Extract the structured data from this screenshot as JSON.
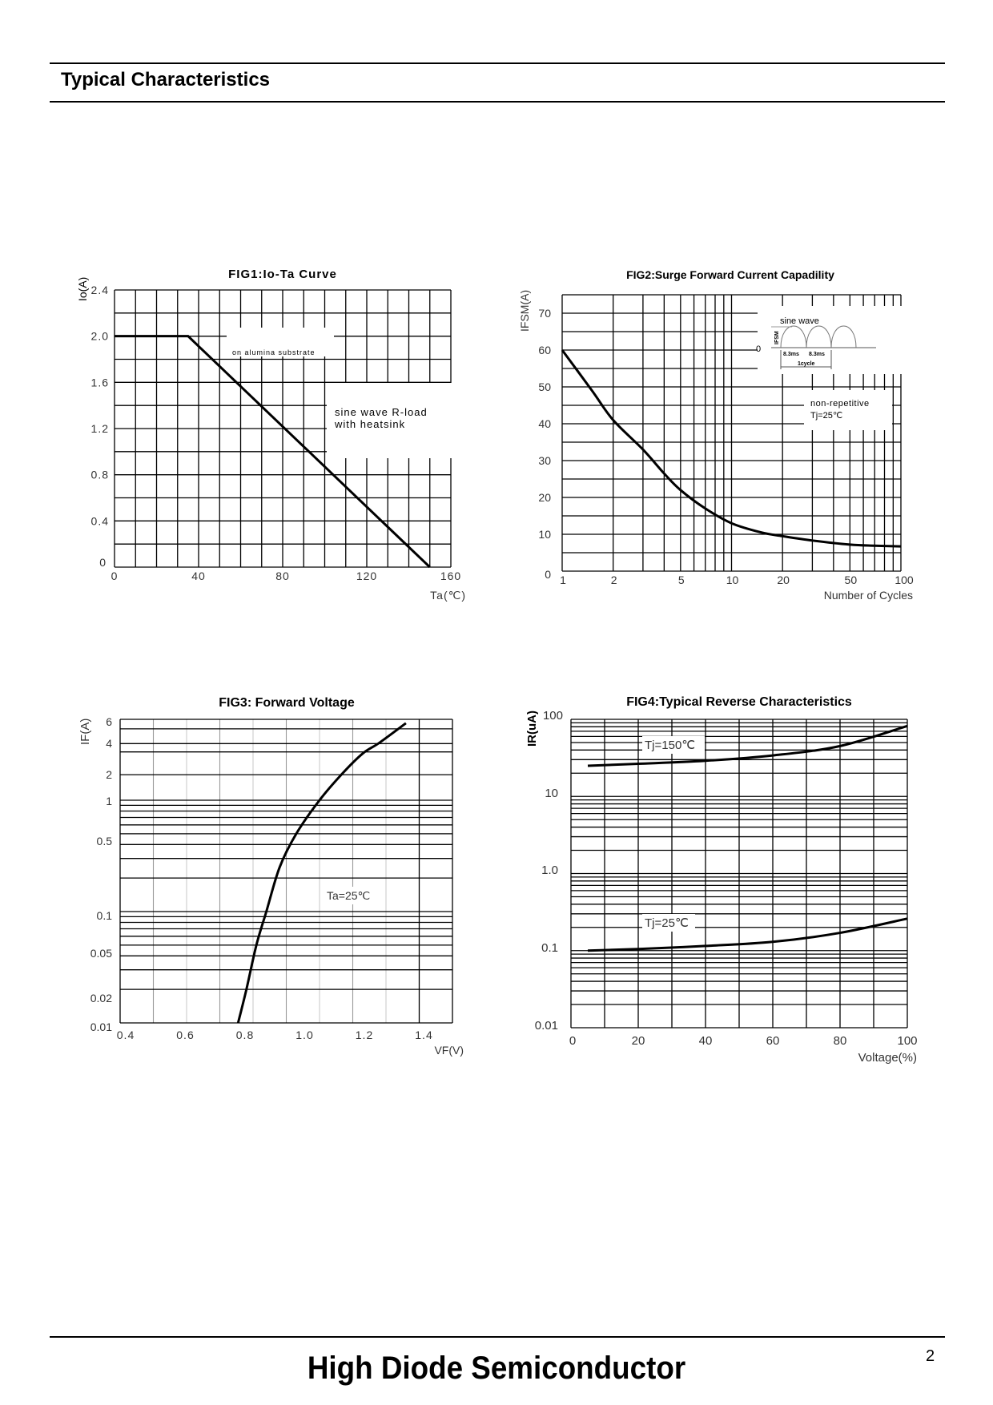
{
  "header": {
    "title": "Typical Characteristics"
  },
  "footer": {
    "brand": "High Diode Semiconductor",
    "page_number": "2"
  },
  "chart_data": [
    {
      "id": "fig1",
      "type": "line",
      "title": "FIG1:Io-Ta Curve",
      "xlabel": "Ta(℃)",
      "ylabel": "Io(A)",
      "xlim": [
        0,
        160
      ],
      "ylim": [
        0,
        2.4
      ],
      "x_ticks": [
        0,
        40,
        80,
        120,
        160
      ],
      "x_tick_labels": [
        "0",
        "40",
        "80",
        "120",
        "160"
      ],
      "y_ticks": [
        0,
        0.4,
        0.8,
        1.2,
        1.6,
        2.0,
        2.4
      ],
      "y_tick_labels": [
        "0",
        "0.4",
        "0.8",
        "1.2",
        "1.6",
        "2.0",
        "2.4"
      ],
      "grid": true,
      "series": [
        {
          "name": "Io",
          "x": [
            0,
            35,
            150
          ],
          "y": [
            2.0,
            2.0,
            0
          ]
        }
      ],
      "annotations": [
        "on alumina substrate",
        "sine wave R-load",
        "with heatsink"
      ]
    },
    {
      "id": "fig2",
      "type": "line",
      "title": "FIG2:Surge Forward Current Capadility",
      "xlabel": "Number of Cycles",
      "ylabel": "IFSM(A)",
      "xscale": "log",
      "xlim": [
        1,
        100
      ],
      "ylim": [
        0,
        75
      ],
      "x_ticks": [
        1,
        2,
        5,
        10,
        20,
        50,
        100
      ],
      "x_tick_labels": [
        "1",
        "2",
        "5",
        "10",
        "20",
        "50",
        "100"
      ],
      "y_ticks": [
        0,
        10,
        20,
        30,
        40,
        50,
        60,
        70
      ],
      "y_tick_labels": [
        "0",
        "10",
        "20",
        "30",
        "40",
        "50",
        "60",
        "70"
      ],
      "grid": true,
      "series": [
        {
          "name": "IFSM",
          "x": [
            1,
            1.5,
            2,
            3,
            4,
            5,
            7,
            10,
            15,
            20,
            30,
            50,
            70,
            100
          ],
          "y": [
            60,
            49,
            41,
            33,
            26.5,
            22,
            17,
            13,
            10.5,
            9.5,
            8.3,
            7.2,
            6.9,
            6.7
          ]
        }
      ],
      "annotations": [
        "sine wave",
        "IFSM",
        "0",
        "8.3ms",
        "8.3ms",
        "1cycle",
        "non-repetitive",
        "Tj=25℃"
      ]
    },
    {
      "id": "fig3",
      "type": "line",
      "title": "FIG3: Forward Voltage",
      "xlabel": "VF(V)",
      "ylabel": "IF(A)",
      "yscale": "log",
      "xlim": [
        0.4,
        1.4
      ],
      "ylim": [
        0.01,
        6
      ],
      "x_ticks": [
        0.4,
        0.6,
        0.8,
        1.0,
        1.2,
        1.4
      ],
      "x_tick_labels": [
        "0.4",
        "0.6",
        "0.8",
        "1.0",
        "1.2",
        "1.4"
      ],
      "y_ticks": [
        0.01,
        0.02,
        0.05,
        0.1,
        0.5,
        1,
        2,
        4,
        6
      ],
      "y_tick_labels": [
        "0.01",
        "0.02",
        "0.05",
        "0.1",
        "0.5",
        "1",
        "2",
        "4",
        "6"
      ],
      "grid": true,
      "series": [
        {
          "name": "Ta=25℃",
          "x": [
            0.755,
            0.78,
            0.81,
            0.84,
            0.88,
            0.93,
            1.0,
            1.07,
            1.13,
            1.18,
            1.26
          ],
          "y": [
            0.01,
            0.02,
            0.05,
            0.1,
            0.25,
            0.5,
            1.0,
            2.0,
            3.0,
            4.0,
            6.0
          ]
        }
      ],
      "annotations": [
        "Ta=25℃"
      ]
    },
    {
      "id": "fig4",
      "type": "line",
      "title": "FIG4:Typical Reverse Characteristics",
      "xlabel": "Voltage(%)",
      "ylabel": "IR(uA)",
      "yscale": "log",
      "xlim": [
        0,
        100
      ],
      "ylim": [
        0.01,
        100
      ],
      "x_ticks": [
        0,
        20,
        40,
        60,
        80,
        100
      ],
      "x_tick_labels": [
        "0",
        "20",
        "40",
        "60",
        "80",
        "100"
      ],
      "y_ticks": [
        0.01,
        0.1,
        1.0,
        10,
        100
      ],
      "y_tick_labels": [
        "0.01",
        "0.1",
        "1.0",
        "10",
        "100"
      ],
      "grid": true,
      "series": [
        {
          "name": "Tj=150℃",
          "x": [
            5,
            20,
            40,
            60,
            80,
            100
          ],
          "y": [
            25,
            26.5,
            29,
            34,
            45,
            82
          ]
        },
        {
          "name": "Tj=25℃",
          "x": [
            5,
            20,
            40,
            60,
            80,
            100
          ],
          "y": [
            0.1,
            0.105,
            0.115,
            0.13,
            0.17,
            0.26
          ]
        }
      ],
      "annotations": [
        "Tj=150℃",
        "Tj=25℃"
      ]
    }
  ]
}
